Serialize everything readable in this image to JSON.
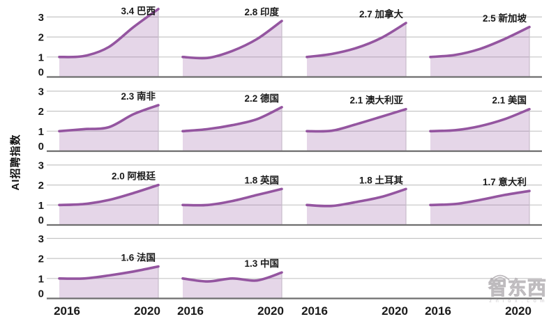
{
  "chart_data": {
    "type": "area",
    "title": "",
    "ylabel": "AI招聘指数",
    "x": [
      2016,
      2017,
      2018,
      2019,
      2020
    ],
    "x_tick_labels": [
      "2016",
      "2020"
    ],
    "y_tick_labels": [
      "3",
      "2",
      "1",
      "0"
    ],
    "y_tick_values": [
      3,
      2,
      1,
      0
    ],
    "ylim": [
      0,
      3.5
    ],
    "grid": "horizontal",
    "legend": "none",
    "layout": {
      "rows": 4,
      "cols": 4,
      "note": "small multiples; bottom row has only 2 populated panels"
    },
    "series": [
      {
        "name": "巴西",
        "label": "3.4 巴西",
        "final": 3.4,
        "row": 0,
        "col": 0,
        "values": [
          1.0,
          1.05,
          1.5,
          2.5,
          3.4
        ]
      },
      {
        "name": "印度",
        "label": "2.8 印度",
        "final": 2.8,
        "row": 0,
        "col": 1,
        "values": [
          1.0,
          0.95,
          1.3,
          1.9,
          2.8
        ]
      },
      {
        "name": "加拿大",
        "label": "2.7 加拿大",
        "final": 2.7,
        "row": 0,
        "col": 2,
        "values": [
          1.0,
          1.15,
          1.45,
          1.95,
          2.7
        ]
      },
      {
        "name": "新加坡",
        "label": "2.5 新加坡",
        "final": 2.5,
        "row": 0,
        "col": 3,
        "values": [
          1.0,
          1.1,
          1.4,
          1.9,
          2.5
        ]
      },
      {
        "name": "南非",
        "label": "2.3 南非",
        "final": 2.3,
        "row": 1,
        "col": 0,
        "values": [
          1.0,
          1.1,
          1.2,
          1.85,
          2.3
        ]
      },
      {
        "name": "德国",
        "label": "2.2 德国",
        "final": 2.2,
        "row": 1,
        "col": 1,
        "values": [
          1.0,
          1.1,
          1.3,
          1.6,
          2.2
        ]
      },
      {
        "name": "澳大利亚",
        "label": "2.1 澳大利亚",
        "final": 2.1,
        "row": 1,
        "col": 2,
        "values": [
          1.0,
          1.02,
          1.35,
          1.72,
          2.1
        ]
      },
      {
        "name": "美国",
        "label": "2.1 美国",
        "final": 2.1,
        "row": 1,
        "col": 3,
        "values": [
          1.0,
          1.05,
          1.25,
          1.6,
          2.1
        ]
      },
      {
        "name": "阿根廷",
        "label": "2.0 阿根廷",
        "final": 2.0,
        "row": 2,
        "col": 0,
        "values": [
          1.0,
          1.05,
          1.25,
          1.6,
          2.0
        ]
      },
      {
        "name": "英国",
        "label": "1.8 英国",
        "final": 1.8,
        "row": 2,
        "col": 1,
        "values": [
          1.0,
          1.0,
          1.2,
          1.5,
          1.8
        ]
      },
      {
        "name": "土耳其",
        "label": "1.8 土耳其",
        "final": 1.8,
        "row": 2,
        "col": 2,
        "values": [
          1.0,
          0.95,
          1.15,
          1.4,
          1.8
        ]
      },
      {
        "name": "意大利",
        "label": "1.7 意大利",
        "final": 1.7,
        "row": 2,
        "col": 3,
        "values": [
          1.0,
          1.05,
          1.25,
          1.5,
          1.7
        ]
      },
      {
        "name": "法国",
        "label": "1.6 法国",
        "final": 1.6,
        "row": 3,
        "col": 0,
        "values": [
          1.0,
          1.0,
          1.15,
          1.35,
          1.6
        ]
      },
      {
        "name": "中国",
        "label": "1.3 中国",
        "final": 1.3,
        "row": 3,
        "col": 1,
        "values": [
          1.0,
          0.85,
          1.0,
          0.9,
          1.3
        ]
      }
    ],
    "colors": {
      "line": "#9455a0",
      "fill": "#9455a0",
      "fill_opacity": 0.24,
      "grid": "#c6c6c6",
      "axis": "#6e6e6e",
      "panel_edge": "#c7bccb",
      "text": "#1a1a1a"
    },
    "watermark": {
      "text": "智东西",
      "subtext": "z h i d x . c o m"
    }
  }
}
